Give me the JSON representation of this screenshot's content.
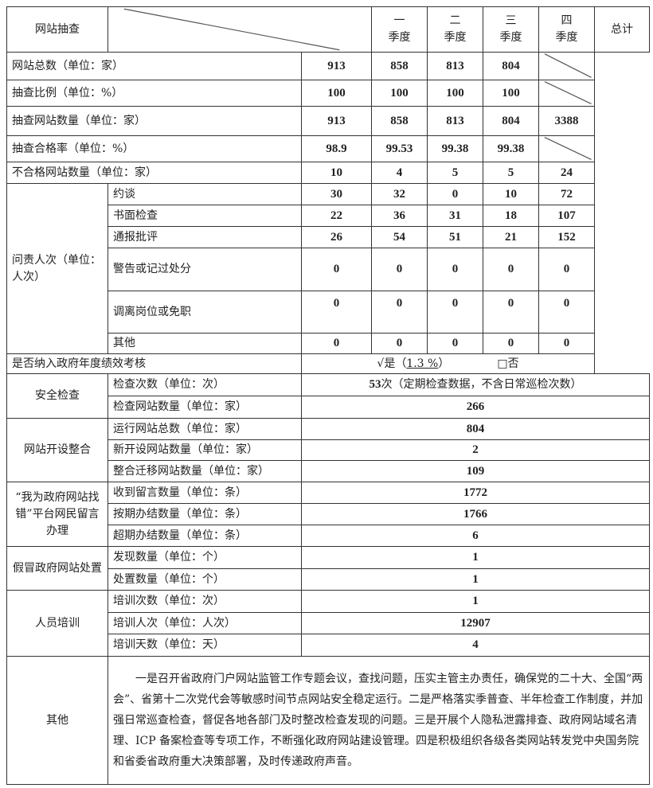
{
  "header": {
    "quarters": [
      "一\n季度",
      "二\n季度",
      "三\n季度",
      "四\n季度"
    ],
    "q1a": "一",
    "q2a": "二",
    "q3a": "三",
    "q4a": "四",
    "qb": "季度",
    "total": "总计"
  },
  "inspection": {
    "section": "网站抽查",
    "rows": [
      {
        "label": "网站总数（单位：家）",
        "values": [
          "913",
          "858",
          "813",
          "804"
        ],
        "total": ""
      },
      {
        "label": "抽查比例（单位：%）",
        "values": [
          "100",
          "100",
          "100",
          "100"
        ],
        "total": ""
      },
      {
        "label": "抽查网站数量（单位：家）",
        "values": [
          "913",
          "858",
          "813",
          "804"
        ],
        "total": "3388"
      },
      {
        "label": "抽查合格率（单位：%）",
        "values": [
          "98.9",
          "99.53",
          "99.38",
          "99.38"
        ],
        "total": ""
      },
      {
        "label": "不合格网站数量（单位：家）",
        "values": [
          "10",
          "4",
          "5",
          "5"
        ],
        "total": "24"
      }
    ],
    "accountability_label": "问责人次（单位：人次）",
    "accountability": [
      {
        "label": "约谈",
        "values": [
          "30",
          "32",
          "0",
          "10"
        ],
        "total": "72"
      },
      {
        "label": "书面检查",
        "values": [
          "22",
          "36",
          "31",
          "18"
        ],
        "total": "107"
      },
      {
        "label": "通报批评",
        "values": [
          "26",
          "54",
          "51",
          "21"
        ],
        "total": "152"
      },
      {
        "label": "警告或记过处分",
        "values": [
          "0",
          "0",
          "0",
          "0"
        ],
        "total": "0"
      },
      {
        "label": "调离岗位或免职",
        "values": [
          "0",
          "0",
          "0",
          "0"
        ],
        "total": "0"
      },
      {
        "label": "其他",
        "values": [
          "0",
          "0",
          "0",
          "0"
        ],
        "total": "0"
      }
    ],
    "assessment_label": "是否纳入政府年度绩效考核",
    "yes_label": "√是（",
    "yes_pct": "1.3 %",
    "yes_close": "）",
    "no_label": "□否"
  },
  "security": {
    "section": "安全检查",
    "rows": [
      {
        "label": "检查次数（单位：次）",
        "value_bold": "53",
        "value": "次（定期检查数据，不含日常巡检次数）"
      },
      {
        "label": "检查网站数量（单位：家）",
        "value": "266"
      }
    ]
  },
  "integration": {
    "section": "网站开设整合",
    "rows": [
      {
        "label": "运行网站总数（单位：家）",
        "value": "804"
      },
      {
        "label": "新开设网站数量（单位：家）",
        "value": "2"
      },
      {
        "label": "整合迁移网站数量（单位：家）",
        "value": "109"
      }
    ]
  },
  "messages": {
    "section": "“我为政府网站找错”平台网民留言办理",
    "rows": [
      {
        "label": "收到留言数量（单位：条）",
        "value": "1772"
      },
      {
        "label": "按期办结数量（单位：条）",
        "value": "1766"
      },
      {
        "label": "超期办结数量（单位：条）",
        "value": "6"
      }
    ]
  },
  "counterfeit": {
    "section": "假冒政府网站处置",
    "rows": [
      {
        "label": "发现数量（单位：个）",
        "value": "1"
      },
      {
        "label": "处置数量（单位：个）",
        "value": "1"
      }
    ]
  },
  "training": {
    "section": "人员培训",
    "rows": [
      {
        "label": "培训次数（单位：次）",
        "value": "1"
      },
      {
        "label": "培训人次（单位：人次）",
        "value": "12907"
      },
      {
        "label": "培训天数（单位：天）",
        "value": "4"
      }
    ]
  },
  "other": {
    "section": "其他",
    "text": "一是召开省政府门户网站监管工作专题会议，查找问题，压实主管主办责任，确保党的二十大、全国“两会”、省第十二次党代会等敏感时间节点网站安全稳定运行。二是严格落实季普查、半年检查工作制度，并加强日常巡查检查，督促各地各部门及时整改检查发现的问题。三是开展个人隐私泄露排查、政府网站域名清理、ICP 备案检查等专项工作，不断强化政府网站建设管理。四是积极组织各级各类网站转发党中央国务院和省委省政府重大决策部署，及时传递政府声音。"
  }
}
